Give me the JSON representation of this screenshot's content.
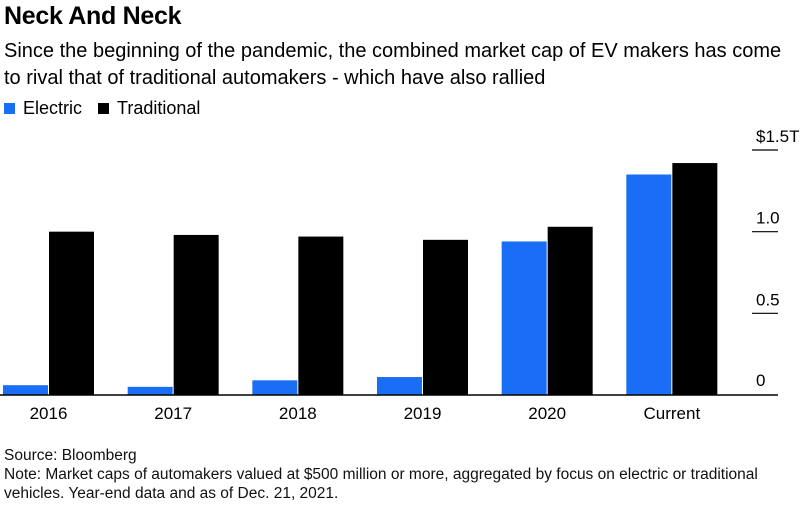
{
  "header": {
    "title": "Neck And Neck",
    "subtitle": "Since the beginning of the pandemic, the combined market cap of EV makers has come to rival that of traditional automakers - which have also rallied"
  },
  "legend": {
    "items": [
      {
        "label": "Electric",
        "color": "#1a6ef5"
      },
      {
        "label": "Traditional",
        "color": "#000000"
      }
    ]
  },
  "footer": {
    "source": "Source: Bloomberg",
    "note": "Note: Market caps of automakers valued at $500 million or more, aggregated by focus on electric or traditional vehicles. Year-end data and as of Dec. 21, 2021."
  },
  "chart_data": {
    "type": "bar",
    "categories": [
      "2016",
      "2017",
      "2018",
      "2019",
      "2020",
      "Current"
    ],
    "series": [
      {
        "name": "Electric",
        "color": "#1a6ef5",
        "values": [
          0.06,
          0.05,
          0.09,
          0.11,
          0.94,
          1.35
        ]
      },
      {
        "name": "Traditional",
        "color": "#000000",
        "values": [
          1.0,
          0.98,
          0.97,
          0.95,
          1.03,
          1.42
        ]
      }
    ],
    "ylim": [
      0,
      1.5
    ],
    "y_ticks": [
      {
        "value": 0,
        "label": "0"
      },
      {
        "value": 0.5,
        "label": "0.5"
      },
      {
        "value": 1.0,
        "label": "1.0"
      },
      {
        "value": 1.5,
        "label": "$1.5T"
      }
    ],
    "y_axis_side": "right",
    "grid": false,
    "legend_position": "top-left"
  }
}
